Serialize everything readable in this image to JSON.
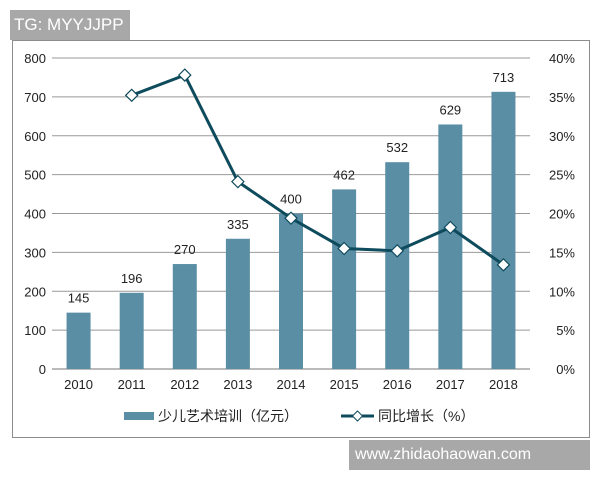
{
  "tag_label": "TG: MYYJJPP",
  "watermark": "www.zhidaohaowan.com",
  "chart_data": {
    "type": "bar+line",
    "categories": [
      "2010",
      "2011",
      "2012",
      "2013",
      "2014",
      "2015",
      "2016",
      "2017",
      "2018"
    ],
    "series": [
      {
        "name": "少儿艺术培训（亿元）",
        "type": "bar",
        "axis": "left",
        "color": "#5a8ea5",
        "values": [
          145,
          196,
          270,
          335,
          400,
          462,
          532,
          629,
          713
        ],
        "data_labels": [
          "145",
          "196",
          "270",
          "335",
          "400",
          "462",
          "532",
          "629",
          "713"
        ]
      },
      {
        "name": "同比增长（%）",
        "type": "line",
        "axis": "right",
        "color": "#0e4b5c",
        "marker": "diamond",
        "values": [
          null,
          35.2,
          37.8,
          24.1,
          19.4,
          15.5,
          15.2,
          18.2,
          13.4
        ]
      }
    ],
    "y_left": {
      "lim": [
        0,
        800
      ],
      "ticks": [
        "0",
        "100",
        "200",
        "300",
        "400",
        "500",
        "600",
        "700",
        "800"
      ]
    },
    "y_right": {
      "lim": [
        0,
        40
      ],
      "ticks": [
        "0%",
        "5%",
        "10%",
        "15%",
        "20%",
        "25%",
        "30%",
        "35%",
        "40%"
      ]
    },
    "grid": true,
    "legend": "bottom"
  }
}
